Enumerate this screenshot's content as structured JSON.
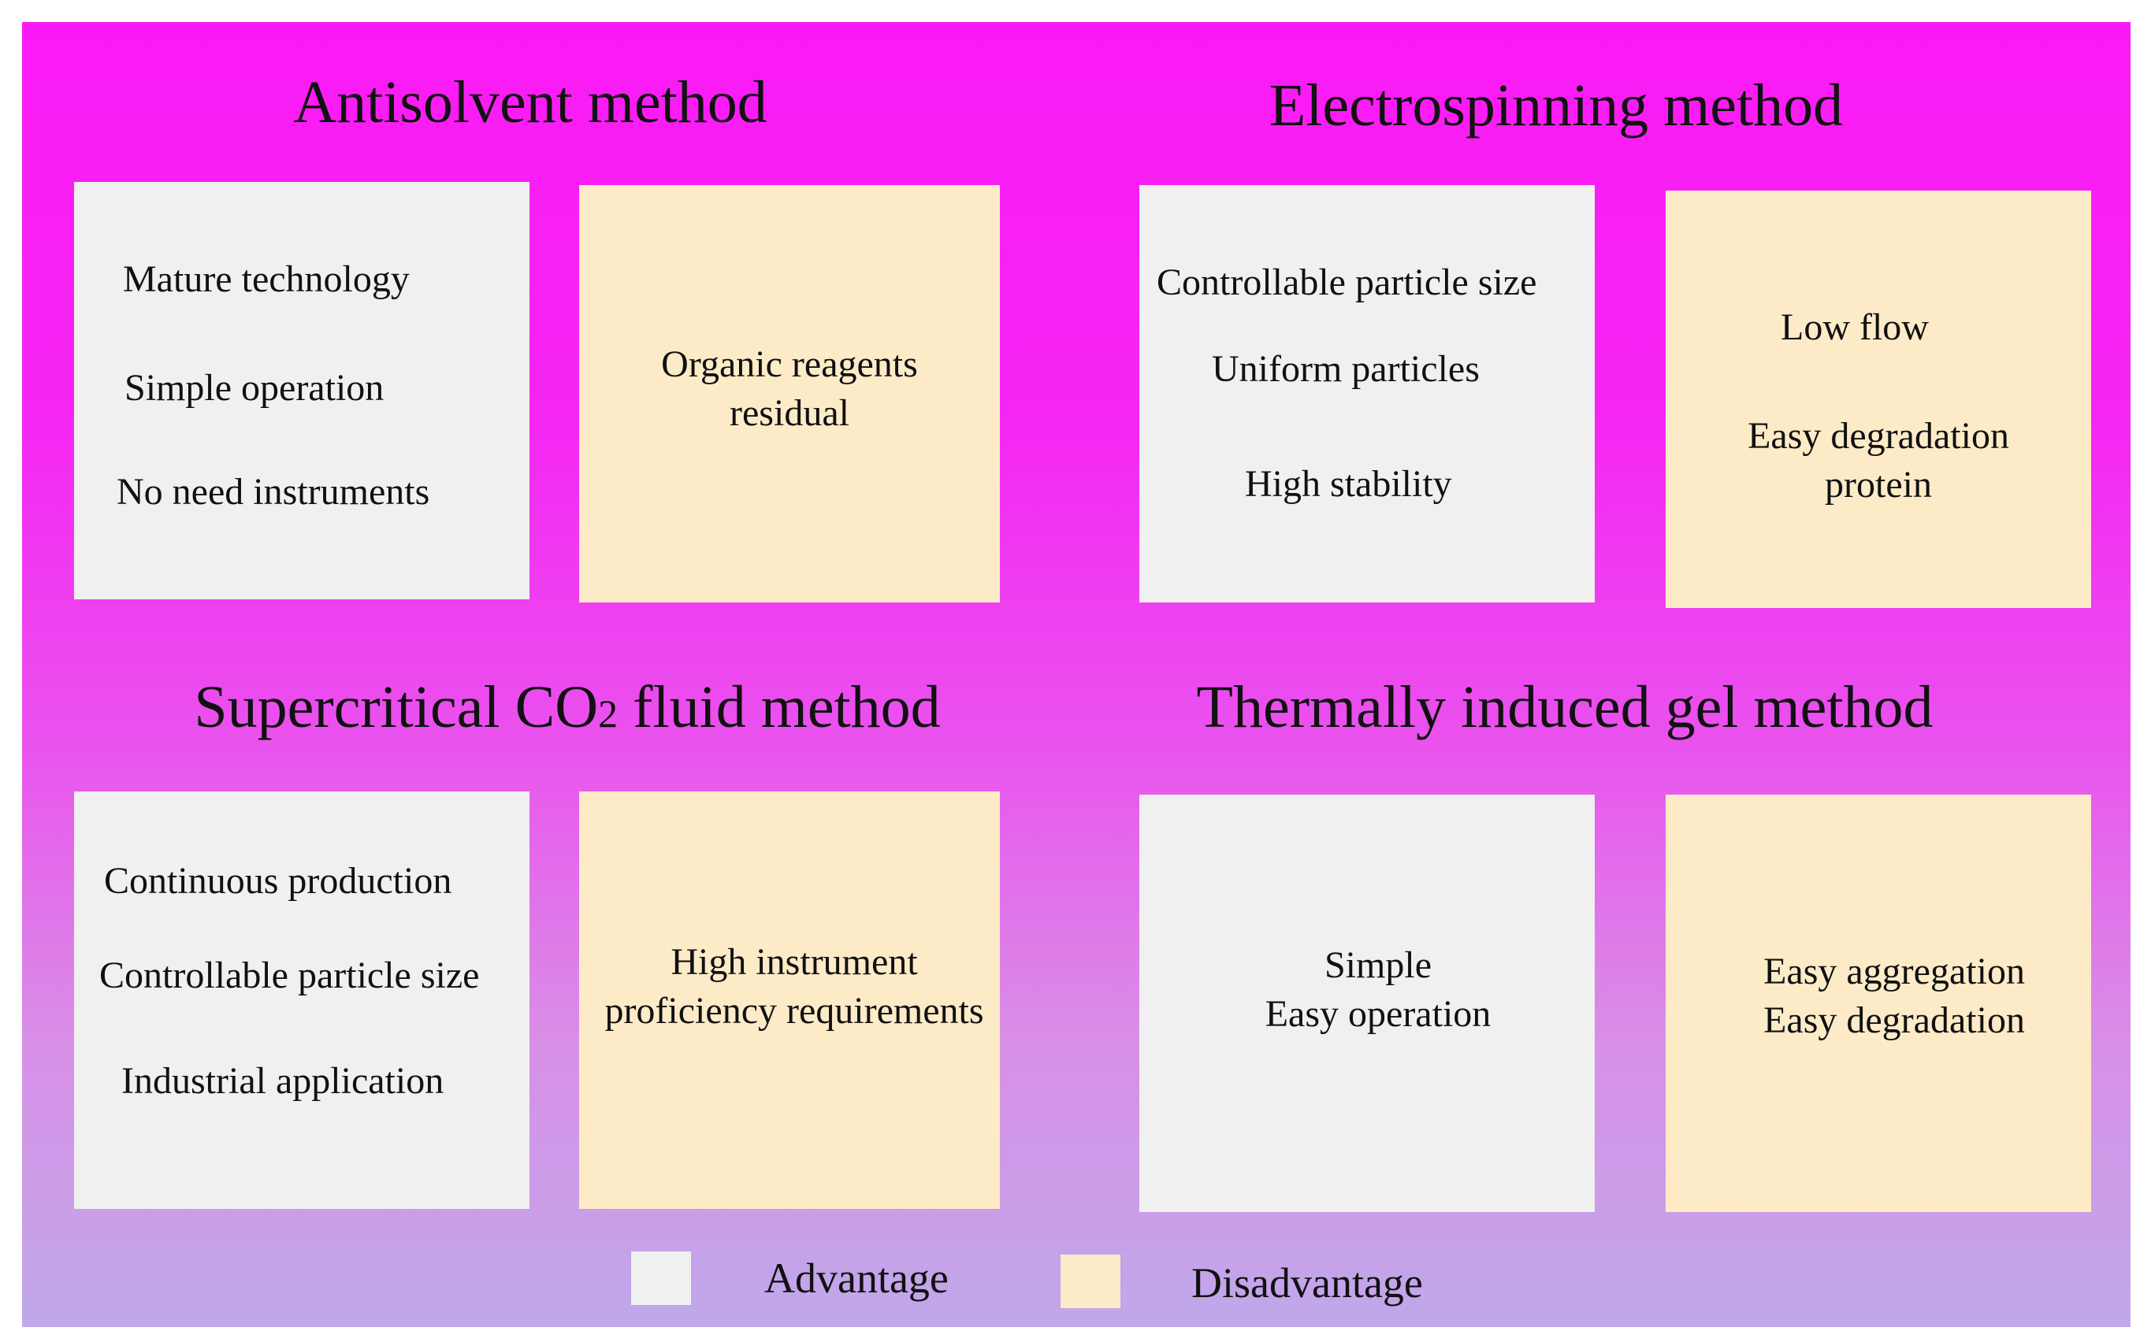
{
  "colors": {
    "advantage": "#f0f0f0",
    "disadvantage": "#fdebc8",
    "background_top": "#fb1af5",
    "background_bottom": "#c0a8ea"
  },
  "methods": {
    "antisolvent": {
      "title": "Antisolvent method",
      "advantages": [
        "Mature technology",
        "Simple operation",
        "No need instruments"
      ],
      "disadvantages": [
        "Organic reagents",
        "residual"
      ]
    },
    "electrospinning": {
      "title": "Electrospinning method",
      "advantages": [
        "Controllable particle size",
        "Uniform particles",
        "High stability"
      ],
      "disadvantages": [
        "Low flow",
        "Easy degradation",
        "protein"
      ]
    },
    "supercritical": {
      "title_prefix": "Supercritical CO",
      "title_subscript": "2",
      "title_suffix": " fluid method",
      "advantages": [
        "Continuous production",
        "Controllable particle size",
        "Industrial application"
      ],
      "disadvantages": [
        "High instrument",
        "proficiency requirements"
      ]
    },
    "thermal": {
      "title": "Thermally induced gel method",
      "advantages": [
        "Simple",
        "Easy operation"
      ],
      "disadvantages": [
        "Easy aggregation",
        "Easy degradation"
      ]
    }
  },
  "legend": {
    "advantage_label": "Advantage",
    "disadvantage_label": "Disadvantage"
  }
}
